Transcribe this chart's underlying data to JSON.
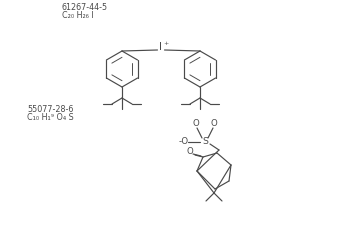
{
  "title1": "61267-44-5",
  "formula1": "C₂₀ H₂₆ I",
  "title2": "55077-28-6",
  "formula2": "C₁₀ H₁⁹ O₄ S",
  "bg_color": "#ffffff",
  "line_color": "#4a4a4a",
  "text_color": "#4a4a4a",
  "font_size_label": 5.8,
  "font_size_atom": 6.2,
  "ring_r": 18
}
